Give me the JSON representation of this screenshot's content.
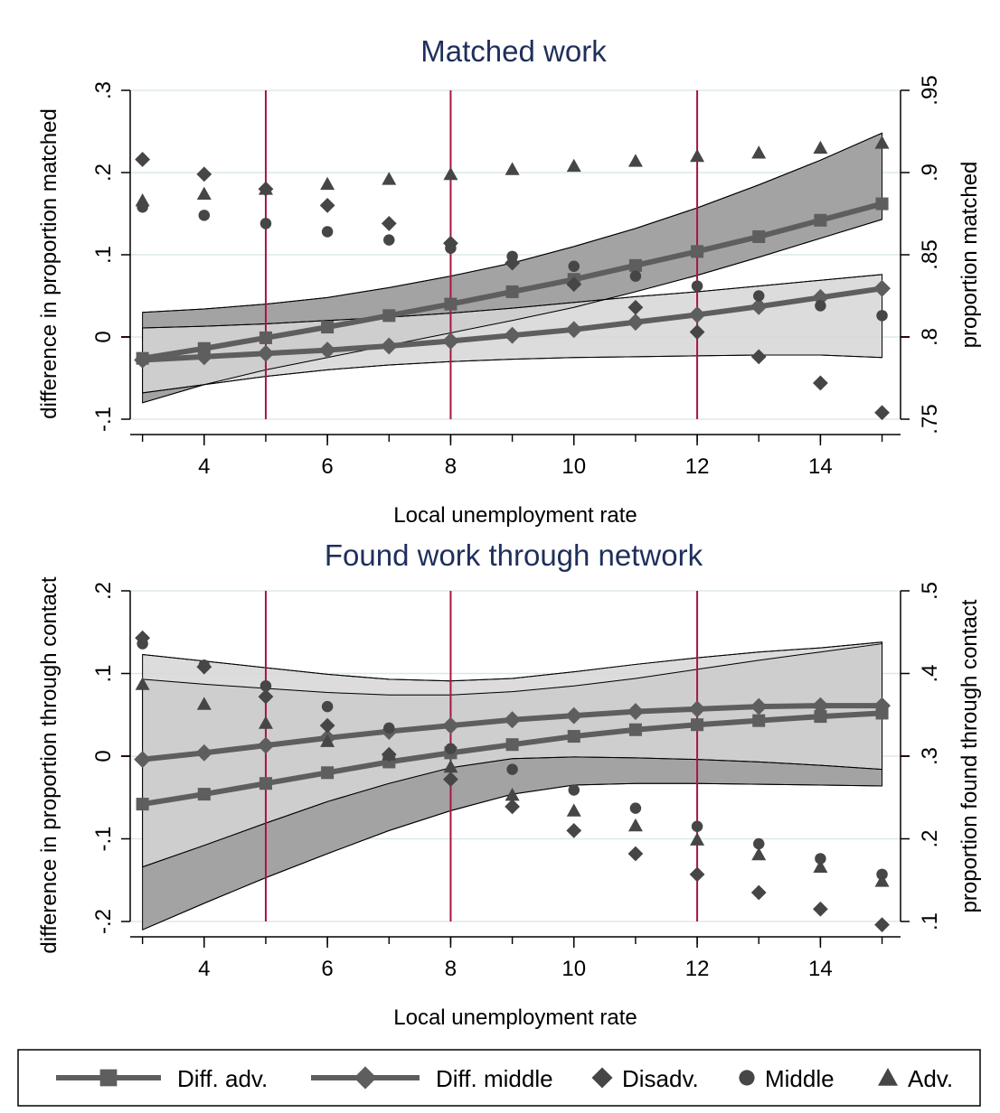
{
  "colors": {
    "band_dark": "#a3a3a3",
    "band_light": "#d6d6d6",
    "line": "#5e5e5e",
    "marker": "#464646",
    "vline": "#a8163f",
    "grid": "#dde8ea",
    "title": "#1f2f5c"
  },
  "legend": {
    "items": [
      {
        "label": "Diff. adv.",
        "kind": "line-square"
      },
      {
        "label": "Diff. middle",
        "kind": "line-diamond"
      },
      {
        "label": "Disadv.",
        "kind": "diamond"
      },
      {
        "label": "Middle",
        "kind": "circle"
      },
      {
        "label": "Adv.",
        "kind": "triangle"
      }
    ]
  },
  "chart_data": [
    {
      "type": "line",
      "title": "Matched work",
      "xlabel": "Local unemployment rate",
      "ylabel": "difference in proportion matched",
      "y2label": "proportion matched",
      "xlim": [
        2.8,
        15.3
      ],
      "ylim": [
        -0.1,
        0.3
      ],
      "y2lim": [
        0.75,
        0.95
      ],
      "x_ticks": [
        4,
        6,
        8,
        10,
        12,
        14
      ],
      "x_minor": [
        3,
        4,
        5,
        6,
        7,
        8,
        9,
        10,
        11,
        12,
        13,
        14,
        15
      ],
      "y_ticks": [
        {
          "v": -0.1,
          "label": "-.1"
        },
        {
          "v": 0,
          "label": "0"
        },
        {
          "v": 0.1,
          "label": ".1"
        },
        {
          "v": 0.2,
          "label": ".2"
        },
        {
          "v": 0.3,
          "label": ".3"
        }
      ],
      "y2_ticks": [
        {
          "v": 0.75,
          "label": ".75"
        },
        {
          "v": 0.8,
          "label": ".8"
        },
        {
          "v": 0.85,
          "label": ".85"
        },
        {
          "v": 0.9,
          "label": ".9"
        },
        {
          "v": 0.95,
          "label": ".95"
        }
      ],
      "vlines": [
        5,
        8,
        12
      ],
      "x": [
        3,
        4,
        5,
        6,
        7,
        8,
        9,
        10,
        11,
        12,
        13,
        14,
        15
      ],
      "bands": [
        {
          "name": "Diff. adv. CI",
          "fill": "dark",
          "lower": [
            -0.08,
            -0.058,
            -0.04,
            -0.025,
            -0.01,
            0.005,
            0.02,
            0.036,
            0.055,
            0.075,
            0.097,
            0.12,
            0.143
          ],
          "upper": [
            0.03,
            0.034,
            0.04,
            0.048,
            0.06,
            0.074,
            0.09,
            0.11,
            0.132,
            0.157,
            0.185,
            0.215,
            0.248
          ]
        },
        {
          "name": "Diff. middle CI",
          "fill": "light",
          "lower": [
            -0.068,
            -0.058,
            -0.048,
            -0.04,
            -0.034,
            -0.03,
            -0.027,
            -0.025,
            -0.024,
            -0.023,
            -0.022,
            -0.022,
            -0.025
          ],
          "upper": [
            0.011,
            0.013,
            0.016,
            0.02,
            0.024,
            0.029,
            0.035,
            0.042,
            0.049,
            0.055,
            0.062,
            0.069,
            0.076
          ]
        }
      ],
      "series": [
        {
          "name": "Diff. adv.",
          "kind": "line-square",
          "values": [
            -0.026,
            -0.014,
            -0.001,
            0.012,
            0.026,
            0.04,
            0.055,
            0.07,
            0.087,
            0.104,
            0.122,
            0.142,
            0.162
          ]
        },
        {
          "name": "Diff. middle",
          "kind": "line-diamond",
          "values": [
            -0.028,
            -0.024,
            -0.02,
            -0.016,
            -0.011,
            -0.005,
            0.002,
            0.009,
            0.018,
            0.027,
            0.037,
            0.048,
            0.059
          ]
        },
        {
          "name": "Disadv.",
          "kind": "diamond",
          "axis": "y2",
          "values": [
            0.908,
            0.899,
            0.89,
            0.88,
            0.869,
            0.857,
            0.845,
            0.832,
            0.818,
            0.803,
            0.788,
            0.772,
            0.754
          ]
        },
        {
          "name": "Middle",
          "kind": "circle",
          "axis": "y2",
          "values": [
            0.879,
            0.874,
            0.869,
            0.864,
            0.859,
            0.854,
            0.849,
            0.843,
            0.837,
            0.831,
            0.825,
            0.819,
            0.813
          ]
        },
        {
          "name": "Adv.",
          "kind": "triangle",
          "axis": "y2",
          "values": [
            0.883,
            0.887,
            0.89,
            0.893,
            0.896,
            0.899,
            0.902,
            0.904,
            0.907,
            0.91,
            0.912,
            0.915,
            0.918
          ]
        }
      ]
    },
    {
      "type": "line",
      "title": "Found work through network",
      "xlabel": "Local unemployment rate",
      "ylabel": "difference in proportion through contact",
      "y2label": "proportion found through contact",
      "xlim": [
        2.8,
        15.3
      ],
      "ylim": [
        -0.2,
        0.2
      ],
      "y2lim": [
        0.1,
        0.5
      ],
      "x_ticks": [
        4,
        6,
        8,
        10,
        12,
        14
      ],
      "x_minor": [
        3,
        4,
        5,
        6,
        7,
        8,
        9,
        10,
        11,
        12,
        13,
        14,
        15
      ],
      "y_ticks": [
        {
          "v": -0.2,
          "label": "-.2"
        },
        {
          "v": -0.1,
          "label": "-.1"
        },
        {
          "v": 0,
          "label": "0"
        },
        {
          "v": 0.1,
          "label": ".1"
        },
        {
          "v": 0.2,
          "label": ".2"
        }
      ],
      "y2_ticks": [
        {
          "v": 0.1,
          "label": ".1"
        },
        {
          "v": 0.2,
          "label": ".2"
        },
        {
          "v": 0.3,
          "label": ".3"
        },
        {
          "v": 0.4,
          "label": ".4"
        },
        {
          "v": 0.5,
          "label": ".5"
        }
      ],
      "vlines": [
        5,
        8,
        12
      ],
      "x": [
        3,
        4,
        5,
        6,
        7,
        8,
        9,
        10,
        11,
        12,
        13,
        14,
        15
      ],
      "bands": [
        {
          "name": "Diff. adv. CI",
          "fill": "dark",
          "lower": [
            -0.21,
            -0.178,
            -0.147,
            -0.118,
            -0.09,
            -0.066,
            -0.046,
            -0.035,
            -0.033,
            -0.033,
            -0.034,
            -0.035,
            -0.036
          ],
          "upper": [
            0.093,
            0.087,
            0.082,
            0.077,
            0.074,
            0.074,
            0.078,
            0.085,
            0.094,
            0.105,
            0.116,
            0.126,
            0.136
          ]
        },
        {
          "name": "Diff. middle CI",
          "fill": "light",
          "lower": [
            -0.134,
            -0.108,
            -0.081,
            -0.055,
            -0.033,
            -0.014,
            -0.003,
            -0.001,
            -0.002,
            -0.004,
            -0.007,
            -0.011,
            -0.016
          ],
          "upper": [
            0.123,
            0.115,
            0.107,
            0.099,
            0.093,
            0.091,
            0.094,
            0.102,
            0.111,
            0.119,
            0.126,
            0.131,
            0.138
          ]
        }
      ],
      "series": [
        {
          "name": "Diff. adv.",
          "kind": "line-square",
          "values": [
            -0.058,
            -0.046,
            -0.033,
            -0.02,
            -0.007,
            0.004,
            0.014,
            0.024,
            0.032,
            0.038,
            0.043,
            0.048,
            0.052
          ]
        },
        {
          "name": "Diff. middle",
          "kind": "line-diamond",
          "values": [
            -0.004,
            0.004,
            0.013,
            0.022,
            0.03,
            0.037,
            0.044,
            0.049,
            0.054,
            0.057,
            0.06,
            0.061,
            0.061
          ]
        },
        {
          "name": "Disadv.",
          "kind": "diamond",
          "axis": "y2",
          "values": [
            0.443,
            0.408,
            0.372,
            0.337,
            0.302,
            0.272,
            0.239,
            0.21,
            0.182,
            0.157,
            0.135,
            0.115,
            0.096
          ]
        },
        {
          "name": "Middle",
          "kind": "circle",
          "axis": "y2",
          "values": [
            0.436,
            0.41,
            0.385,
            0.36,
            0.334,
            0.309,
            0.284,
            0.259,
            0.237,
            0.215,
            0.194,
            0.176,
            0.157
          ]
        },
        {
          "name": "Adv.",
          "kind": "triangle",
          "axis": "y2",
          "values": [
            0.387,
            0.363,
            0.34,
            0.318,
            0.302,
            0.287,
            0.253,
            0.234,
            0.216,
            0.199,
            0.181,
            0.166,
            0.149
          ]
        }
      ]
    }
  ]
}
